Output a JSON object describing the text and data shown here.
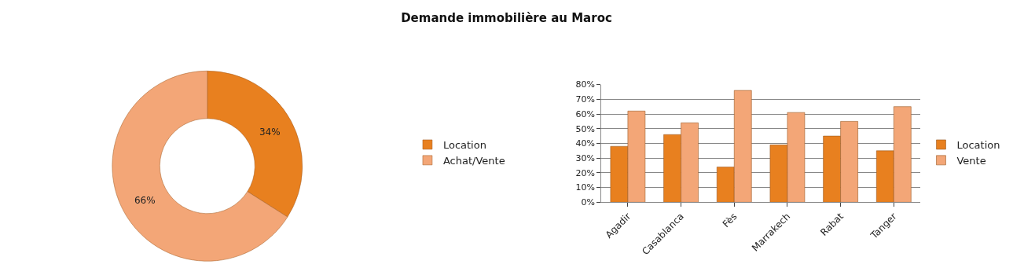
{
  "chart_data": [
    {
      "type": "donut",
      "title": "Demande immobilière au Maroc",
      "categories": [
        "Location",
        "Achat/Vente"
      ],
      "values": [
        34,
        66
      ],
      "colors": [
        "#e8801f",
        "#f3a677"
      ],
      "value_labels": [
        "34%",
        "66%"
      ],
      "legend": "right"
    },
    {
      "type": "bar",
      "categories": [
        "Agadir",
        "Casablanca",
        "Fès",
        "Marrakech",
        "Rabat",
        "Tanger"
      ],
      "series": [
        {
          "name": "Location",
          "color": "#e8801f",
          "values": [
            38,
            46,
            24,
            39,
            45,
            35
          ]
        },
        {
          "name": "Vente",
          "color": "#f3a677",
          "values": [
            62,
            54,
            76,
            61,
            55,
            65
          ]
        }
      ],
      "ylim": [
        0,
        80
      ],
      "yticks": [
        {
          "value": 0,
          "label": "0%"
        },
        {
          "value": 10,
          "label": "10%"
        },
        {
          "value": 20,
          "label": "20%"
        },
        {
          "value": 30,
          "label": "30%"
        },
        {
          "value": 40,
          "label": "40%"
        },
        {
          "value": 50,
          "label": "50%"
        },
        {
          "value": 60,
          "label": "60%"
        },
        {
          "value": 70,
          "label": "70%"
        },
        {
          "value": 80,
          "label": "80%"
        }
      ],
      "grid": "y",
      "legend": "right"
    }
  ]
}
